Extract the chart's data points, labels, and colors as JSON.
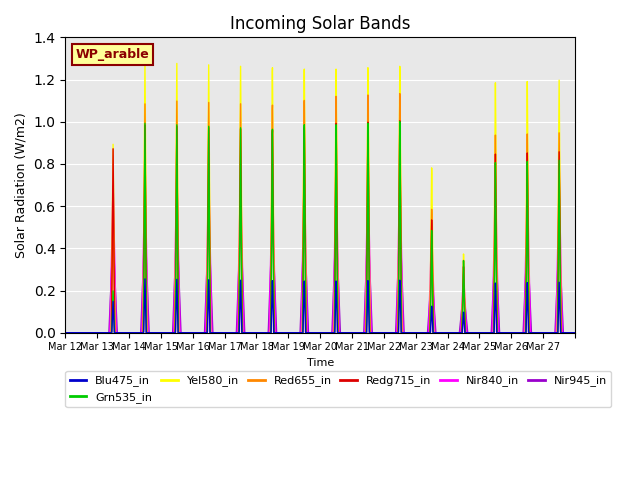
{
  "title": "Incoming Solar Bands",
  "xlabel": "Time",
  "ylabel": "Solar Radiation (W/m2)",
  "annotation": "WP_arable",
  "ylim": [
    0,
    1.4
  ],
  "background_color": "#ffffff",
  "plot_bg_color": "#e8e8e8",
  "series": [
    {
      "name": "Blu475_in",
      "color": "#0000cc",
      "lw": 1.0
    },
    {
      "name": "Grn535_in",
      "color": "#00cc00",
      "lw": 1.0
    },
    {
      "name": "Yel580_in",
      "color": "#ffff00",
      "lw": 1.0
    },
    {
      "name": "Red655_in",
      "color": "#ff8800",
      "lw": 1.0
    },
    {
      "name": "Redg715_in",
      "color": "#dd0000",
      "lw": 1.0
    },
    {
      "name": "Nir840_in",
      "color": "#ff00ff",
      "lw": 1.0
    },
    {
      "name": "Nir945_in",
      "color": "#9900cc",
      "lw": 1.0
    }
  ],
  "n_days": 16,
  "tick_labels": [
    "Mar 12",
    "Mar 13",
    "Mar 14",
    "Mar 15",
    "Mar 16",
    "Mar 17",
    "Mar 18",
    "Mar 19",
    "Mar 20",
    "Mar 21",
    "Mar 22",
    "Mar 23",
    "Mar 24",
    "Mar 25",
    "Mar 26",
    "Mar 27"
  ],
  "grid_color": "#ffffff",
  "day_peaks": {
    "yel": [
      0.0,
      0.9,
      1.3,
      1.3,
      1.3,
      1.3,
      1.3,
      1.3,
      1.3,
      1.3,
      1.3,
      0.8,
      0.38,
      1.2,
      1.2,
      1.2
    ],
    "red": [
      0.0,
      0.7,
      1.1,
      1.12,
      1.12,
      1.12,
      1.12,
      1.15,
      1.17,
      1.17,
      1.17,
      0.6,
      0.35,
      0.95,
      0.95,
      0.95
    ],
    "redg": [
      0.0,
      0.88,
      1.0,
      1.0,
      1.0,
      1.0,
      1.0,
      1.02,
      1.04,
      1.04,
      1.04,
      0.55,
      0.32,
      0.86,
      0.86,
      0.86
    ],
    "nir840": [
      0.0,
      0.72,
      0.79,
      0.79,
      0.79,
      0.79,
      0.79,
      0.78,
      0.78,
      0.79,
      0.79,
      0.5,
      0.28,
      0.75,
      0.75,
      0.75
    ],
    "grn": [
      0.0,
      0.2,
      1.01,
      1.01,
      1.01,
      1.01,
      1.01,
      1.04,
      1.04,
      1.04,
      1.04,
      0.5,
      0.35,
      0.82,
      0.82,
      0.82
    ],
    "blu": [
      0.0,
      0.15,
      0.26,
      0.26,
      0.26,
      0.26,
      0.26,
      0.26,
      0.26,
      0.26,
      0.26,
      0.13,
      0.1,
      0.24,
      0.24,
      0.24
    ],
    "nir945": [
      0.0,
      0.47,
      0.54,
      0.54,
      0.54,
      0.54,
      0.54,
      0.54,
      0.54,
      0.54,
      0.54,
      0.3,
      0.2,
      0.46,
      0.46,
      0.46
    ]
  },
  "widths": {
    "yel": 0.06,
    "red": 0.055,
    "redg": 0.05,
    "nir840": 0.1,
    "grn": 0.045,
    "blu": 0.04,
    "nir945": 0.13
  }
}
